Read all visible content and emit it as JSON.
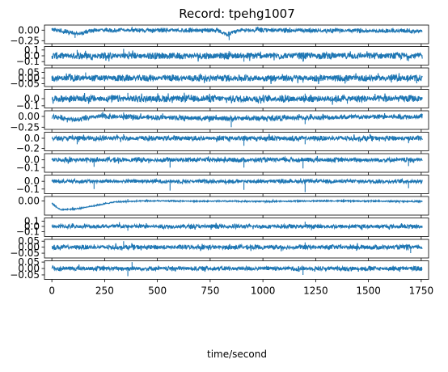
{
  "chart_data": {
    "type": "line",
    "title": "Record: tpehg1007",
    "xlabel": "time/second",
    "x_ticks": [
      0,
      250,
      500,
      750,
      1000,
      1250,
      1500,
      1750
    ],
    "xlim": [
      -35,
      1785
    ],
    "x_range": [
      0,
      1755
    ],
    "series_color": "#1f77b4",
    "grid": false,
    "channels": [
      {
        "ylim": [
          -0.32,
          0.12
        ],
        "yticks": [
          {
            "v": 0.0,
            "label": "0.00"
          },
          {
            "v": -0.25,
            "label": "−0.25"
          }
        ],
        "baseline": 0.0,
        "amplitude": 0.05,
        "drift": [
          [
            0,
            0.02
          ],
          [
            130,
            -0.08
          ],
          [
            200,
            0.0
          ],
          [
            780,
            0.0
          ],
          [
            830,
            -0.1
          ],
          [
            900,
            0.0
          ],
          [
            1755,
            -0.02
          ]
        ],
        "spikes": [
          [
            110,
            -0.12
          ],
          [
            840,
            -0.15
          ],
          [
            380,
            0.08
          ]
        ]
      },
      {
        "ylim": [
          -0.16,
          0.16
        ],
        "yticks": [
          {
            "v": 0.1,
            "label": "0.1"
          },
          {
            "v": 0.0,
            "label": "0.0"
          },
          {
            "v": -0.1,
            "label": "−0.1"
          }
        ],
        "baseline": 0.0,
        "amplitude": 0.06,
        "drift": [],
        "spikes": [
          [
            120,
            0.1
          ],
          [
            340,
            0.12
          ],
          [
            910,
            -0.1
          ],
          [
            1190,
            -0.1
          ],
          [
            1690,
            -0.09
          ]
        ]
      },
      {
        "ylim": [
          -0.075,
          0.09
        ],
        "yticks": [
          {
            "v": 0.05,
            "label": "0.05"
          },
          {
            "v": 0.0,
            "label": "0.00"
          },
          {
            "v": -0.05,
            "label": "−0.05"
          }
        ],
        "baseline": 0.0,
        "amplitude": 0.03,
        "drift": [],
        "spikes": [
          [
            160,
            0.05
          ],
          [
            1190,
            -0.04
          ]
        ]
      },
      {
        "ylim": [
          -0.13,
          0.13
        ],
        "yticks": [
          {
            "v": 0.0,
            "label": "0.0"
          },
          {
            "v": -0.1,
            "label": "−0.1"
          }
        ],
        "baseline": 0.0,
        "amplitude": 0.05,
        "drift": [],
        "spikes": [
          [
            360,
            0.08
          ],
          [
            1200,
            0.07
          ],
          [
            1400,
            -0.07
          ]
        ]
      },
      {
        "ylim": [
          -0.3,
          0.13
        ],
        "yticks": [
          {
            "v": 0.0,
            "label": "0.00"
          },
          {
            "v": -0.25,
            "label": "−0.25"
          }
        ],
        "baseline": 0.0,
        "amplitude": 0.06,
        "drift": [
          [
            0,
            0.0
          ],
          [
            120,
            -0.08
          ],
          [
            220,
            0.0
          ],
          [
            820,
            -0.05
          ],
          [
            1755,
            0.0
          ]
        ],
        "spikes": [
          [
            850,
            -0.2
          ],
          [
            1200,
            -0.15
          ],
          [
            340,
            0.1
          ]
        ]
      },
      {
        "ylim": [
          -0.25,
          0.12
        ],
        "yticks": [
          {
            "v": 0.0,
            "label": "0.0"
          },
          {
            "v": -0.2,
            "label": "−0.2"
          }
        ],
        "baseline": 0.0,
        "amplitude": 0.05,
        "drift": [],
        "spikes": [
          [
            120,
            -0.12
          ],
          [
            340,
            0.08
          ],
          [
            910,
            -0.15
          ],
          [
            1200,
            -0.12
          ],
          [
            1690,
            -0.1
          ]
        ]
      },
      {
        "ylim": [
          -0.16,
          0.08
        ],
        "yticks": [
          {
            "v": 0.0,
            "label": "0.0"
          },
          {
            "v": -0.1,
            "label": "−0.1"
          }
        ],
        "baseline": 0.0,
        "amplitude": 0.03,
        "drift": [],
        "spikes": [
          [
            200,
            -0.09
          ],
          [
            560,
            -0.1
          ],
          [
            910,
            -0.1
          ],
          [
            1190,
            -0.11
          ],
          [
            1690,
            -0.08
          ]
        ]
      },
      {
        "ylim": [
          -0.16,
          0.08
        ],
        "yticks": [
          {
            "v": 0.0,
            "label": "0.0"
          },
          {
            "v": -0.1,
            "label": "−0.1"
          }
        ],
        "baseline": 0.0,
        "amplitude": 0.025,
        "drift": [],
        "spikes": [
          [
            200,
            -0.1
          ],
          [
            560,
            -0.12
          ],
          [
            910,
            -0.11
          ],
          [
            1200,
            -0.14
          ],
          [
            1690,
            -0.09
          ]
        ]
      },
      {
        "ylim": [
          -0.29,
          0.09
        ],
        "yticks": [
          {
            "v": 0.0,
            "label": "0.00"
          }
        ],
        "baseline": 0.0,
        "amplitude": 0.015,
        "drift": [
          [
            0,
            -0.05
          ],
          [
            40,
            -0.18
          ],
          [
            120,
            -0.16
          ],
          [
            300,
            -0.02
          ],
          [
            450,
            0.0
          ],
          [
            1000,
            -0.01
          ],
          [
            1300,
            0.0
          ],
          [
            1755,
            -0.01
          ]
        ],
        "spikes": [
          [
            360,
            0.05
          ],
          [
            1190,
            0.02
          ]
        ]
      },
      {
        "ylim": [
          -0.19,
          0.16
        ],
        "yticks": [
          {
            "v": 0.1,
            "label": "0.1"
          },
          {
            "v": 0.0,
            "label": "0.0"
          },
          {
            "v": -0.1,
            "label": "−0.1"
          }
        ],
        "baseline": 0.0,
        "amplitude": 0.04,
        "drift": [],
        "spikes": [
          [
            320,
            0.08
          ],
          [
            1200,
            0.09
          ],
          [
            1230,
            -0.07
          ],
          [
            360,
            -0.08
          ]
        ]
      },
      {
        "ylim": [
          -0.09,
          0.065
        ],
        "yticks": [
          {
            "v": 0.05,
            "label": "0.05"
          },
          {
            "v": 0.0,
            "label": "0.00"
          },
          {
            "v": -0.05,
            "label": "−0.05"
          }
        ],
        "baseline": 0.0,
        "amplitude": 0.02,
        "drift": [],
        "spikes": [
          [
            340,
            0.05
          ],
          [
            1200,
            0.04
          ],
          [
            1700,
            -0.05
          ]
        ]
      },
      {
        "ylim": [
          -0.085,
          0.06
        ],
        "yticks": [
          {
            "v": 0.05,
            "label": "0.05"
          },
          {
            "v": 0.0,
            "label": "0.00"
          },
          {
            "v": -0.05,
            "label": "−0.05"
          }
        ],
        "baseline": 0.0,
        "amplitude": 0.018,
        "drift": [],
        "spikes": [
          [
            360,
            -0.06
          ],
          [
            380,
            0.05
          ],
          [
            1190,
            -0.05
          ]
        ]
      }
    ]
  }
}
